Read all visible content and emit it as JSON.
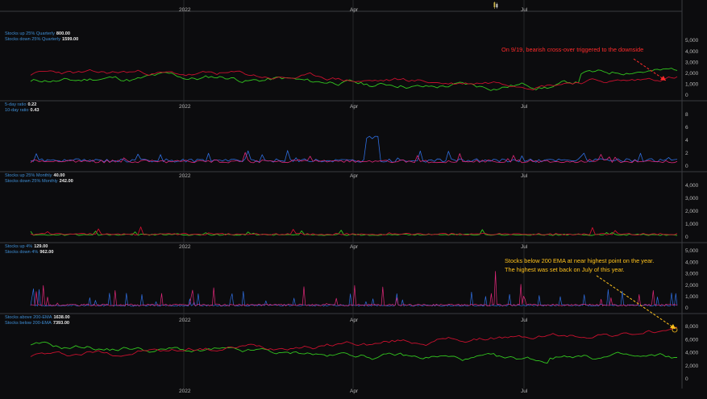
{
  "colors": {
    "background": "#0c0c0e",
    "grid": "#26272b",
    "axis_text": "#b8b8b8",
    "legend_label": "#3f8fd6",
    "green": "#32c51f",
    "red": "#c8102e",
    "blue": "#2f6ee0",
    "magenta": "#e0287a",
    "annotation_red": "#ff2a2a",
    "annotation_yellow": "#ffc21c"
  },
  "toolbar_icon": "candle-icon",
  "x_axis": {
    "ticks": [
      "2022",
      "Apr",
      "Jul"
    ]
  },
  "panels": [
    {
      "legend": [
        {
          "label": "Stocks up 25% Quarterly",
          "value": "800.00"
        },
        {
          "label": "Stocks down 25% Quarterly",
          "value": "1599.00"
        }
      ],
      "y_ticks": [
        "5,000",
        "4,000",
        "3,000",
        "2,000",
        "1,000",
        "0"
      ]
    },
    {
      "legend": [
        {
          "label": "5-day ratio",
          "value": "0.22"
        },
        {
          "label": "10-day ratio",
          "value": "0.43"
        }
      ],
      "y_ticks": [
        "8",
        "6",
        "4",
        "2",
        "0"
      ]
    },
    {
      "legend": [
        {
          "label": "Stocks up 25% Monthly",
          "value": "40.00"
        },
        {
          "label": "Stocks down 25% Monthly",
          "value": "242.00"
        }
      ],
      "y_ticks": [
        "4,000",
        "3,000",
        "2,000",
        "1,000",
        "0"
      ]
    },
    {
      "legend": [
        {
          "label": "Stocks up 4%",
          "value": "129.00"
        },
        {
          "label": "Stocks down 4%",
          "value": "962.00"
        }
      ],
      "y_ticks": [
        "5,000",
        "4,000",
        "3,000",
        "2,000",
        "1,000",
        "0"
      ]
    },
    {
      "legend": [
        {
          "label": "Stocks above 200-EMA",
          "value": "1638.00"
        },
        {
          "label": "Stocks below 200-EMA",
          "value": "7393.00"
        }
      ],
      "y_ticks": [
        "8,000",
        "6,000",
        "4,000",
        "2,000",
        "0"
      ]
    }
  ],
  "annotations": [
    {
      "lines": [
        "On 9/19, bearish cross-over triggered to the downside"
      ]
    },
    {
      "lines": [
        "Stocks below 200 EMA at near highest point on the year.",
        "The highest was set back on July of this year."
      ]
    }
  ]
}
